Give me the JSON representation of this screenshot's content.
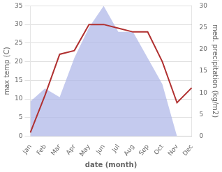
{
  "chart_data": {
    "type": "line",
    "categories": [
      "Jan",
      "Feb",
      "Mar",
      "Apr",
      "May",
      "Jun",
      "Jul",
      "Aug",
      "Sep",
      "Oct",
      "Nov",
      "Dec"
    ],
    "series": [
      {
        "type": "area",
        "axis": "y2",
        "color": "#b0b8e8",
        "values": [
          8,
          11,
          9,
          18,
          25,
          30,
          24,
          24,
          18,
          12,
          0,
          0
        ]
      },
      {
        "type": "line",
        "color": "#b03030",
        "values": [
          1,
          11,
          22,
          23,
          30,
          30,
          29,
          28,
          28,
          20,
          9,
          13
        ]
      }
    ],
    "xlabel": "date (month)",
    "ylabel": "max temp (C)",
    "y2label": "med. precipitation (kg/m2)",
    "ylim": [
      0,
      35
    ],
    "yticks": [
      0,
      5,
      10,
      15,
      20,
      25,
      30,
      35
    ],
    "y2lim": [
      0,
      30
    ],
    "y2ticks": [
      0,
      5,
      10,
      15,
      20,
      25,
      30
    ],
    "grid": true
  }
}
